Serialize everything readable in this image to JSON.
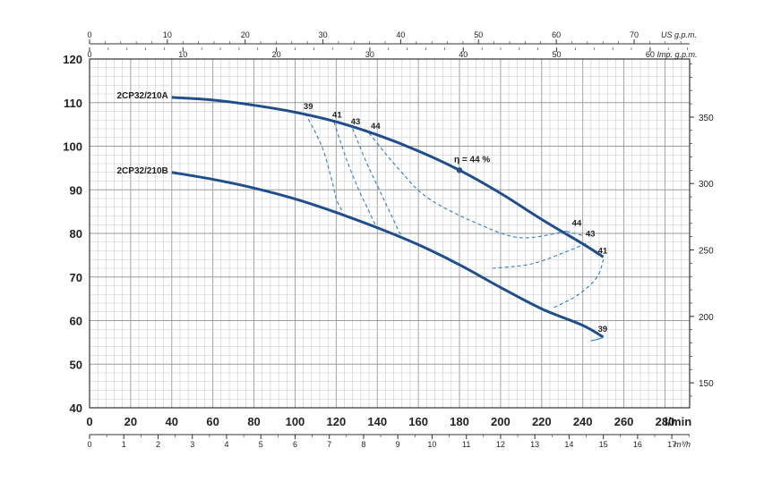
{
  "chart_data": {
    "type": "line",
    "x_primary": {
      "unit": "l/min",
      "ticks": [
        "0",
        "20",
        "40",
        "60",
        "80",
        "100",
        "120",
        "140",
        "160",
        "180",
        "200",
        "220",
        "240",
        "260",
        "280"
      ],
      "range": [
        0,
        292
      ]
    },
    "x_m3h": {
      "unit": "m³/h",
      "ticks": [
        "0",
        "1",
        "2",
        "3",
        "4",
        "5",
        "6",
        "7",
        "8",
        "9",
        "10",
        "11",
        "12",
        "13",
        "14",
        "15",
        "16",
        "17"
      ]
    },
    "x_usgpm": {
      "unit": "US g.p.m.",
      "ticks": [
        "0",
        "10",
        "20",
        "30",
        "40",
        "50",
        "60",
        "70"
      ]
    },
    "x_impgpm": {
      "unit": "Imp. g.p.m.",
      "ticks": [
        "0",
        "10",
        "20",
        "30",
        "40",
        "50",
        "60"
      ]
    },
    "y_left": {
      "ticks": [
        "40",
        "50",
        "60",
        "70",
        "80",
        "90",
        "100",
        "110",
        "120"
      ],
      "range": [
        40,
        120
      ]
    },
    "y_right": {
      "ticks": [
        "150",
        "200",
        "250",
        "300",
        "350"
      ]
    },
    "grid": true,
    "series": [
      {
        "name": "2CP32/210A",
        "x": [
          40,
          60,
          80,
          100,
          120,
          140,
          160,
          180,
          200,
          220,
          240,
          250
        ],
        "y": [
          111.2,
          110.6,
          109.4,
          107.8,
          105.6,
          102.6,
          98.9,
          94.5,
          89.2,
          83.2,
          77.6,
          74.6
        ]
      },
      {
        "name": "2CP32/210B",
        "x": [
          40,
          60,
          80,
          100,
          120,
          140,
          160,
          180,
          200,
          220,
          240,
          250
        ],
        "y": [
          94.0,
          92.4,
          90.4,
          87.9,
          84.8,
          81.3,
          77.4,
          72.8,
          67.6,
          62.7,
          58.9,
          56.2
        ]
      }
    ],
    "efficiency_curves": [
      {
        "label": "39",
        "top_label": "39",
        "bottom_label": "39",
        "x": [
          105,
          113,
          118,
          120,
          123
        ],
        "y": [
          107.5,
          100,
          92,
          88,
          85
        ]
      },
      {
        "label": "41",
        "top_label": "41",
        "bottom_label": "41",
        "x": [
          119,
          125,
          131,
          135,
          139
        ],
        "y": [
          105.5,
          97,
          90,
          86,
          82
        ]
      },
      {
        "label": "43",
        "top_label": "43",
        "bottom_label": "43",
        "x": [
          128,
          135,
          141,
          147,
          152
        ],
        "y": [
          104,
          96,
          90,
          84,
          79
        ]
      },
      {
        "label": "44",
        "top_label": "44",
        "bottom_label": "44",
        "x": [
          136,
          150,
          165,
          190,
          210,
          232
        ],
        "y": [
          103,
          95,
          88,
          82,
          79,
          80.5
        ]
      }
    ],
    "efficiency_annotation": {
      "text": "η = 44 %",
      "x": 180,
      "y": 94.5
    }
  }
}
